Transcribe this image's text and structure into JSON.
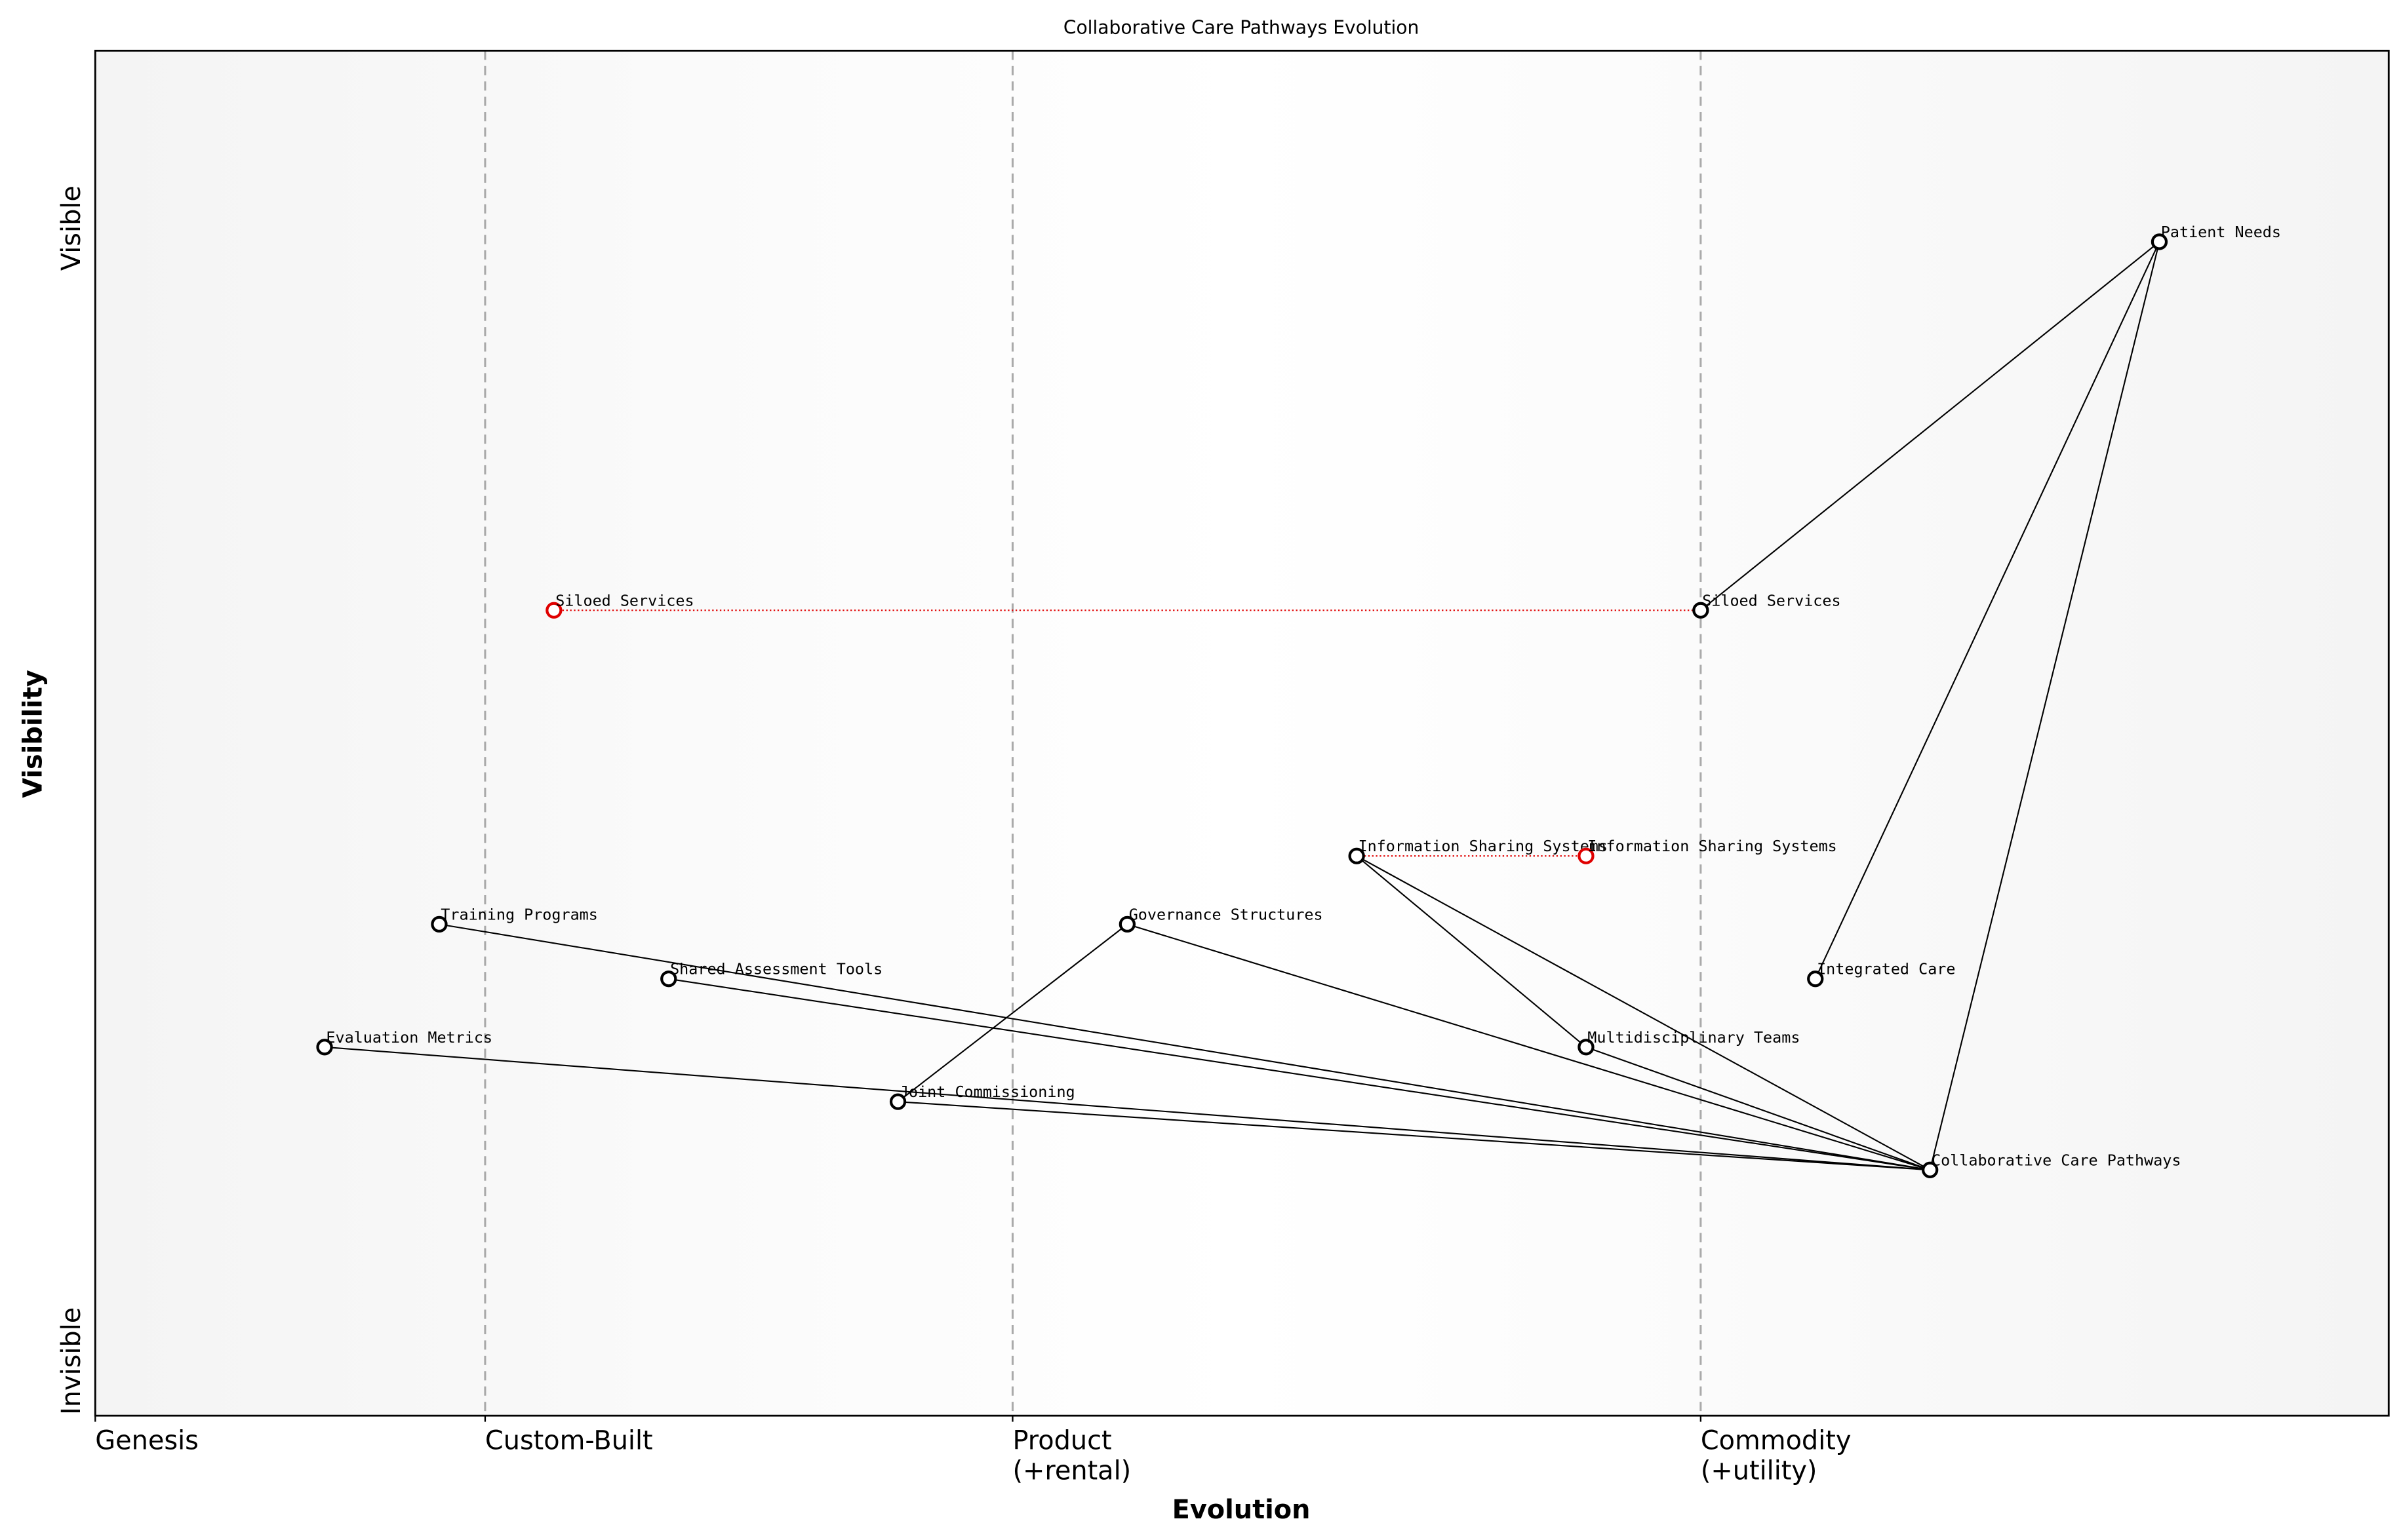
{
  "chart_data": {
    "type": "wardley",
    "title": "Collaborative Care Pathways Evolution",
    "x_label": "Evolution",
    "y_label": "Visibility",
    "xlim": [
      0,
      1
    ],
    "ylim": [
      0,
      1
    ],
    "xticks": [
      {
        "value": 0,
        "label": "Genesis"
      },
      {
        "value": 0.17,
        "label": "Custom-Built"
      },
      {
        "value": 0.4,
        "label": "Product\n(+rental)"
      },
      {
        "value": 0.7,
        "label": "Commodity\n(+utility)"
      }
    ],
    "yticks": [
      {
        "value": 0.04,
        "label": "Invisible"
      },
      {
        "value": 0.87,
        "label": "Visible"
      }
    ],
    "nodes": [
      {
        "name": "Patient Needs",
        "x": 0.9,
        "y": 0.86,
        "color": "#000000"
      },
      {
        "name": "Siloed Services",
        "x": 0.7,
        "y": 0.59,
        "color": "#000000"
      },
      {
        "name": "Siloed Services",
        "x": 0.2,
        "y": 0.59,
        "color": "#e00000"
      },
      {
        "name": "Information Sharing Systems",
        "x": 0.55,
        "y": 0.41,
        "color": "#000000"
      },
      {
        "name": "Information Sharing Systems",
        "x": 0.65,
        "y": 0.41,
        "color": "#e00000"
      },
      {
        "name": "Training Programs",
        "x": 0.15,
        "y": 0.36,
        "color": "#000000"
      },
      {
        "name": "Governance Structures",
        "x": 0.45,
        "y": 0.36,
        "color": "#000000"
      },
      {
        "name": "Shared Assessment Tools",
        "x": 0.25,
        "y": 0.32,
        "color": "#000000"
      },
      {
        "name": "Integrated Care",
        "x": 0.75,
        "y": 0.32,
        "color": "#000000"
      },
      {
        "name": "Evaluation Metrics",
        "x": 0.1,
        "y": 0.27,
        "color": "#000000"
      },
      {
        "name": "Multidisciplinary Teams",
        "x": 0.65,
        "y": 0.27,
        "color": "#000000"
      },
      {
        "name": "Joint Commissioning",
        "x": 0.35,
        "y": 0.23,
        "color": "#000000"
      },
      {
        "name": "Collaborative Care Pathways",
        "x": 0.8,
        "y": 0.18,
        "color": "#000000"
      }
    ],
    "links": [
      [
        0,
        1
      ],
      [
        0,
        8
      ],
      [
        0,
        12
      ],
      [
        12,
        5
      ],
      [
        12,
        7
      ],
      [
        12,
        9
      ],
      [
        12,
        11
      ],
      [
        12,
        6
      ],
      [
        12,
        3
      ],
      [
        12,
        10
      ],
      [
        3,
        10
      ],
      [
        11,
        6
      ]
    ],
    "evolutions": [
      [
        1,
        2
      ],
      [
        3,
        4
      ]
    ]
  }
}
